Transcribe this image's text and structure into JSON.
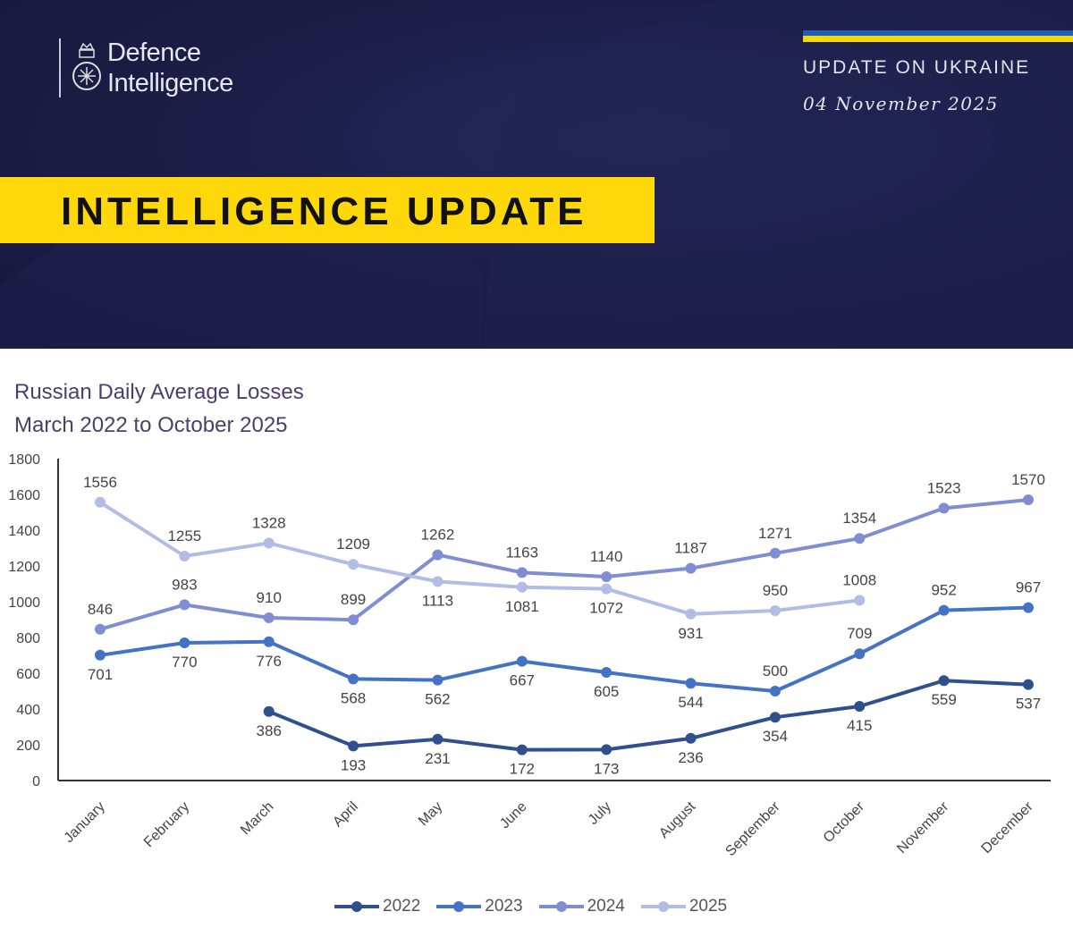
{
  "header": {
    "logo_line1": "Defence",
    "logo_line2": "Intelligence",
    "update_on": "UPDATE ON UKRAINE",
    "date": "04 November 2025",
    "banner": "INTELLIGENCE UPDATE"
  },
  "colors": {
    "navy": "#1b1d45",
    "yellow": "#fed80b",
    "flag_blue": "#1f5fb4",
    "flag_yellow": "#f5d90a"
  },
  "chart_data": {
    "type": "line",
    "title": "Russian Daily Average Losses",
    "subtitle": "March 2022 to October 2025",
    "xlabel": "",
    "ylabel": "",
    "ylim": [
      0,
      1800
    ],
    "yticks": [
      0,
      200,
      400,
      600,
      800,
      1000,
      1200,
      1400,
      1600,
      1800
    ],
    "categories": [
      "January",
      "February",
      "March",
      "April",
      "May",
      "June",
      "July",
      "August",
      "September",
      "October",
      "November",
      "December"
    ],
    "grid": false,
    "legend_placement": "bottom",
    "series": [
      {
        "name": "2022",
        "color": "#2f4f8f",
        "values": [
          null,
          null,
          386,
          193,
          231,
          172,
          173,
          236,
          354,
          415,
          559,
          537
        ],
        "label_pos": [
          "below",
          "below",
          "below",
          "below",
          "below",
          "below",
          "below",
          "below",
          "below",
          "below",
          "below",
          "below"
        ]
      },
      {
        "name": "2023",
        "color": "#4472c4",
        "values": [
          701,
          770,
          776,
          568,
          562,
          667,
          605,
          544,
          500,
          709,
          952,
          967
        ],
        "label_pos": [
          "below",
          "below",
          "below",
          "below",
          "below",
          "below",
          "below",
          "below",
          "above",
          "above",
          "above",
          "above"
        ]
      },
      {
        "name": "2024",
        "color": "#7f8ed2",
        "values": [
          846,
          983,
          910,
          899,
          1262,
          1163,
          1140,
          1187,
          1271,
          1354,
          1523,
          1570
        ],
        "label_pos": [
          "above",
          "above",
          "above",
          "above",
          "above",
          "above",
          "above",
          "above",
          "above",
          "above",
          "above",
          "above"
        ]
      },
      {
        "name": "2025",
        "color": "#b3bce4",
        "values": [
          1556,
          1255,
          1328,
          1209,
          1113,
          1081,
          1072,
          931,
          950,
          1008,
          null,
          null
        ],
        "label_pos": [
          "above",
          "above",
          "above",
          "above",
          "below",
          "below",
          "below",
          "below",
          "above",
          "above",
          "above",
          "above"
        ]
      }
    ]
  }
}
